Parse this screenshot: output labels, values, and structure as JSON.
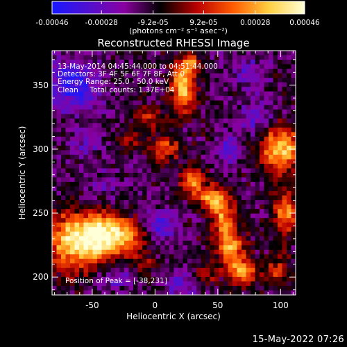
{
  "chart_data": {
    "type": "heatmap",
    "title": "Reconstructed RHESSI Image",
    "xlabel": "Heliocentric X (arcsec)",
    "ylabel": "Heliocentric Y (arcsec)",
    "xlim": [
      -82,
      112
    ],
    "ylim": [
      186,
      377
    ],
    "x_ticks": [
      -50,
      0,
      50,
      100
    ],
    "y_ticks": [
      200,
      250,
      300,
      350
    ],
    "colorbar": {
      "range": [
        -0.00046,
        0.00046
      ],
      "tick_labels": [
        "-0.00046",
        "-0.00028",
        "-9.2e-05",
        "9.2e-05",
        "0.00028",
        "0.00046"
      ],
      "label": "(photons cm⁻² s⁻¹ asec⁻²)",
      "colors": [
        "#1818ff",
        "#5010d0",
        "#8a00a0",
        "#000000",
        "#b80000",
        "#ff5a00",
        "#ffd040",
        "#ffffd8"
      ]
    },
    "annotations": [
      "13-May-2014 04:45:44.000 to 04:51:44.000",
      "Detectors: 3F 4F 5F 6F 7F 8F, Att 0",
      "Energy Range: 25.0 - 50.0 keV",
      "Clean     Total counts: 1.37E+04"
    ],
    "peak_label": "Position of Peak = [-38,231]",
    "peak": {
      "x": -38,
      "y": 231
    },
    "sources": [
      {
        "x": -65,
        "y": 228,
        "sx": 15,
        "sy": 16,
        "amp": 0.00048
      },
      {
        "x": -40,
        "y": 232,
        "sx": 12,
        "sy": 12,
        "amp": 0.0005
      },
      {
        "x": -20,
        "y": 232,
        "sx": 10,
        "sy": 9,
        "amp": 0.00026
      },
      {
        "x": 22,
        "y": 349,
        "sx": 7,
        "sy": 13,
        "amp": 0.00046
      },
      {
        "x": 28,
        "y": 368,
        "sx": 5,
        "sy": 5,
        "amp": 0.0003
      },
      {
        "x": 30,
        "y": 275,
        "sx": 6,
        "sy": 7,
        "amp": 0.0004
      },
      {
        "x": 45,
        "y": 262,
        "sx": 8,
        "sy": 7,
        "amp": 0.00038
      },
      {
        "x": 55,
        "y": 245,
        "sx": 8,
        "sy": 11,
        "amp": 0.00034
      },
      {
        "x": 60,
        "y": 222,
        "sx": 8,
        "sy": 9,
        "amp": 0.00036
      },
      {
        "x": 70,
        "y": 204,
        "sx": 9,
        "sy": 8,
        "amp": 0.00034
      },
      {
        "x": 40,
        "y": 203,
        "sx": 6,
        "sy": 6,
        "amp": 0.00022
      },
      {
        "x": 8,
        "y": 300,
        "sx": 9,
        "sy": 7,
        "amp": 0.00028
      },
      {
        "x": -5,
        "y": 325,
        "sx": 8,
        "sy": 6,
        "amp": 0.00022
      },
      {
        "x": -20,
        "y": 308,
        "sx": 6,
        "sy": 6,
        "amp": 0.00018
      },
      {
        "x": 100,
        "y": 300,
        "sx": 12,
        "sy": 12,
        "amp": 0.00046
      },
      {
        "x": 104,
        "y": 250,
        "sx": 7,
        "sy": 12,
        "amp": 0.00034
      },
      {
        "x": 98,
        "y": 205,
        "sx": 7,
        "sy": 9,
        "amp": 0.0002
      },
      {
        "x": -10,
        "y": 210,
        "sx": 7,
        "sy": 7,
        "amp": 0.00016
      },
      {
        "x": -40,
        "y": 270,
        "sx": 10,
        "sy": 9,
        "amp": -0.0001
      },
      {
        "x": -65,
        "y": 350,
        "sx": 14,
        "sy": 14,
        "amp": -0.0003
      },
      {
        "x": 5,
        "y": 240,
        "sx": 9,
        "sy": 9,
        "amp": -0.00022
      },
      {
        "x": 80,
        "y": 325,
        "sx": 9,
        "sy": 9,
        "amp": -0.0002
      },
      {
        "x": 60,
        "y": 300,
        "sx": 8,
        "sy": 8,
        "amp": -0.0002
      },
      {
        "x": 20,
        "y": 195,
        "sx": 8,
        "sy": 8,
        "amp": -0.00018
      },
      {
        "x": -30,
        "y": 200,
        "sx": 10,
        "sy": 6,
        "amp": -0.00016
      },
      {
        "x": 75,
        "y": 360,
        "sx": 8,
        "sy": 8,
        "amp": -0.00018
      },
      {
        "x": -55,
        "y": 305,
        "sx": 8,
        "sy": 8,
        "amp": -0.00016
      }
    ]
  },
  "footer": {
    "timestamp": "15-May-2022 07:26"
  }
}
